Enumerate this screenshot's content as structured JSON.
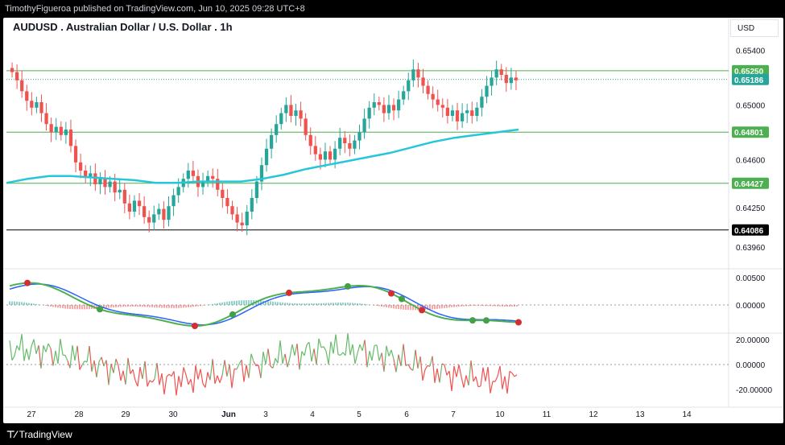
{
  "header": {
    "publisher_line": "TimothyFigueroa published on TradingView.com, Jun 10, 2025 09:28 UTC+8"
  },
  "footer": {
    "brand": "TradingView"
  },
  "colors": {
    "up": "#26a69a",
    "down": "#ef5350",
    "ema": "#26c6da",
    "hline": "#4caf50",
    "support": "#000000",
    "osc_green": "#4caf50",
    "osc_red": "#b71c1c",
    "osc_blue": "#2962ff"
  },
  "chart_data": {
    "type": "candlestick",
    "title": "AUDUSD . Australian Dollar / U.S. Dollar . 1h",
    "currency": "USD",
    "x_ticks": [
      "27",
      "28",
      "29",
      "30",
      "Jun",
      "3",
      "4",
      "5",
      "6",
      "7",
      "10",
      "11",
      "12",
      "13",
      "14"
    ],
    "price_axis": {
      "ticks": [
        "0.65400",
        "0.65000",
        "0.64600",
        "0.64250",
        "0.63960"
      ],
      "range": [
        0.6392,
        0.6552
      ]
    },
    "horizontal_lines": [
      {
        "label": "0.65250",
        "value": 0.6525,
        "color": "#4caf50"
      },
      {
        "label": "0.64801",
        "value": 0.64801,
        "color": "#4caf50"
      },
      {
        "label": "0.64427",
        "value": 0.64427,
        "color": "#4caf50"
      },
      {
        "label": "0.64086",
        "value": 0.64086,
        "color": "#000000"
      }
    ],
    "last_price": {
      "label": "0.65186",
      "value": 0.65186
    },
    "closes": [
      0.6524,
      0.6518,
      0.651,
      0.6503,
      0.6498,
      0.6502,
      0.6494,
      0.6486,
      0.648,
      0.6484,
      0.6478,
      0.6482,
      0.647,
      0.6458,
      0.6452,
      0.6447,
      0.645,
      0.6442,
      0.6446,
      0.644,
      0.6444,
      0.6436,
      0.6438,
      0.6428,
      0.6422,
      0.643,
      0.6426,
      0.6418,
      0.6414,
      0.642,
      0.6424,
      0.6416,
      0.6426,
      0.6434,
      0.644,
      0.6446,
      0.6452,
      0.6448,
      0.644,
      0.6444,
      0.6448,
      0.6446,
      0.6438,
      0.6432,
      0.6426,
      0.642,
      0.6414,
      0.6412,
      0.6422,
      0.6432,
      0.6444,
      0.6456,
      0.6468,
      0.6478,
      0.6486,
      0.6494,
      0.65,
      0.6492,
      0.6496,
      0.649,
      0.6478,
      0.647,
      0.6464,
      0.646,
      0.6466,
      0.646,
      0.6468,
      0.6476,
      0.6472,
      0.6468,
      0.6474,
      0.648,
      0.649,
      0.6498,
      0.6502,
      0.65,
      0.6494,
      0.65,
      0.6496,
      0.6504,
      0.651,
      0.6518,
      0.6526,
      0.652,
      0.6514,
      0.6508,
      0.6504,
      0.65,
      0.6498,
      0.6492,
      0.6496,
      0.6488,
      0.6494,
      0.6496,
      0.6492,
      0.6498,
      0.6506,
      0.6514,
      0.652,
      0.6526,
      0.6522,
      0.6516,
      0.652,
      0.6518
    ],
    "ema_series": [
      0.6443,
      0.6446,
      0.6448,
      0.6448,
      0.6447,
      0.6446,
      0.6445,
      0.6443,
      0.6443,
      0.6444,
      0.6444,
      0.6444,
      0.6446,
      0.6449,
      0.6453,
      0.6456,
      0.6459,
      0.6462,
      0.6465,
      0.6469,
      0.6473,
      0.6476,
      0.6478,
      0.648,
      0.6482
    ],
    "macd": {
      "axis_ticks": [
        "0.00500",
        "0.00000"
      ],
      "markers_red": 6,
      "markers_green": 6
    },
    "rsi_like": {
      "axis_ticks": [
        "20.00000",
        "0.00000",
        "-20.00000"
      ]
    }
  }
}
